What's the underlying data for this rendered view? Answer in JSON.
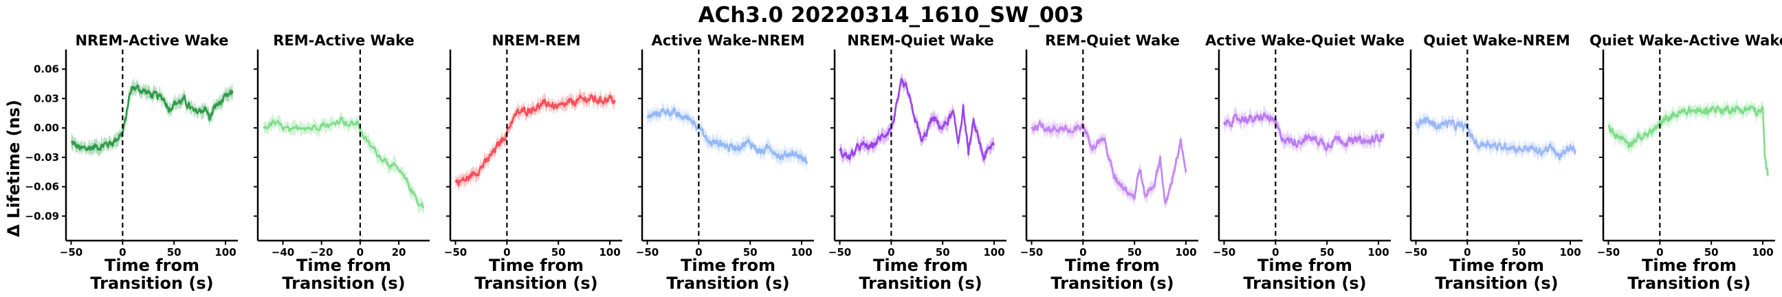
{
  "chart_data": {
    "type": "line",
    "title": "ACh3.0 20220314_1610_SW_003",
    "ylabel": "Δ Lifetime (ns)",
    "xlabel": "Time from\nTransition (s)",
    "ylim": [
      -0.115,
      0.08
    ],
    "yticks": [
      0.06,
      0.03,
      0.0,
      -0.03,
      -0.06,
      -0.09
    ],
    "ytick_labels": [
      "0.06",
      "0.03",
      "0.00",
      "−0.03",
      "−0.06",
      "−0.09"
    ],
    "grid": false,
    "transition_marker": "dashed vertical line at x = 0",
    "panels": [
      {
        "title": "NREM-Active Wake",
        "color": "#2e9c49",
        "xlim": [
          -55,
          112
        ],
        "xticks": [
          -50,
          0,
          50,
          100
        ],
        "x": [
          -50,
          -40,
          -30,
          -20,
          -10,
          0,
          3,
          6,
          10,
          15,
          20,
          30,
          40,
          45,
          50,
          60,
          70,
          80,
          85,
          90,
          100,
          107
        ],
        "y": [
          -0.015,
          -0.022,
          -0.02,
          -0.018,
          -0.015,
          -0.005,
          0.008,
          0.03,
          0.042,
          0.04,
          0.038,
          0.033,
          0.03,
          0.02,
          0.025,
          0.028,
          0.015,
          0.02,
          0.01,
          0.022,
          0.03,
          0.036
        ]
      },
      {
        "title": "REM-Active Wake",
        "color": "#7fdc8b",
        "xlim": [
          -53,
          36
        ],
        "xticks": [
          -40,
          -20,
          0,
          20
        ],
        "x": [
          -50,
          -45,
          -40,
          -35,
          -30,
          -25,
          -20,
          -15,
          -10,
          -5,
          -1,
          2,
          5,
          10,
          15,
          20,
          25,
          30,
          33
        ],
        "y": [
          0.0,
          0.005,
          0.0,
          -0.005,
          0.003,
          0.0,
          0.005,
          0.002,
          0.01,
          0.003,
          0.005,
          -0.01,
          -0.018,
          -0.028,
          -0.035,
          -0.045,
          -0.058,
          -0.075,
          -0.08
        ]
      },
      {
        "title": "NREM-REM",
        "color": "#f4505a",
        "xlim": [
          -55,
          112
        ],
        "xticks": [
          -50,
          0,
          50,
          100
        ],
        "x": [
          -50,
          -40,
          -30,
          -20,
          -10,
          0,
          5,
          10,
          20,
          30,
          40,
          50,
          60,
          70,
          80,
          90,
          100,
          105
        ],
        "y": [
          -0.055,
          -0.053,
          -0.045,
          -0.035,
          -0.02,
          -0.005,
          0.008,
          0.015,
          0.018,
          0.022,
          0.025,
          0.02,
          0.025,
          0.028,
          0.03,
          0.028,
          0.03,
          0.027
        ]
      },
      {
        "title": "Active Wake-NREM",
        "color": "#94b8f4",
        "xlim": [
          -55,
          112
        ],
        "xticks": [
          -50,
          0,
          50,
          100
        ],
        "x": [
          -50,
          -40,
          -30,
          -20,
          -10,
          0,
          5,
          10,
          20,
          30,
          40,
          50,
          60,
          70,
          80,
          90,
          100,
          105
        ],
        "y": [
          0.01,
          0.015,
          0.018,
          0.012,
          0.01,
          0.003,
          -0.008,
          -0.015,
          -0.015,
          -0.02,
          -0.018,
          -0.015,
          -0.025,
          -0.02,
          -0.03,
          -0.025,
          -0.03,
          -0.035
        ]
      },
      {
        "title": "NREM-Quiet Wake",
        "color": "#9b46e8",
        "xlim": [
          -55,
          112
        ],
        "xticks": [
          -50,
          0,
          50,
          100
        ],
        "x": [
          -50,
          -40,
          -30,
          -20,
          -10,
          0,
          5,
          10,
          15,
          20,
          30,
          40,
          50,
          60,
          65,
          70,
          75,
          80,
          90,
          100
        ],
        "y": [
          -0.025,
          -0.03,
          -0.018,
          -0.02,
          -0.01,
          0.0,
          0.02,
          0.045,
          0.04,
          0.02,
          -0.015,
          0.01,
          0.0,
          0.015,
          -0.015,
          0.02,
          -0.025,
          0.005,
          -0.03,
          -0.015
        ]
      },
      {
        "title": "REM-Quiet Wake",
        "color": "#c386f0",
        "xlim": [
          -55,
          112
        ],
        "xticks": [
          -50,
          0,
          50,
          100
        ],
        "x": [
          -50,
          -40,
          -30,
          -20,
          -10,
          0,
          5,
          10,
          20,
          30,
          40,
          50,
          55,
          60,
          70,
          75,
          80,
          85,
          90,
          95,
          100
        ],
        "y": [
          0.0,
          0.003,
          -0.002,
          0.0,
          -0.005,
          0.003,
          -0.01,
          -0.018,
          -0.01,
          -0.05,
          -0.06,
          -0.07,
          -0.04,
          -0.07,
          -0.055,
          -0.03,
          -0.08,
          -0.06,
          -0.035,
          -0.015,
          -0.048
        ]
      },
      {
        "title": "Active Wake-Quiet Wake",
        "color": "#b97af0",
        "xlim": [
          -55,
          112
        ],
        "xticks": [
          -50,
          0,
          50,
          100
        ],
        "x": [
          -50,
          -40,
          -30,
          -20,
          -10,
          0,
          5,
          10,
          20,
          30,
          40,
          50,
          60,
          70,
          80,
          90,
          100,
          105
        ],
        "y": [
          0.005,
          0.008,
          0.01,
          0.008,
          0.012,
          0.005,
          -0.008,
          -0.012,
          -0.015,
          -0.01,
          -0.012,
          -0.018,
          -0.01,
          -0.015,
          -0.012,
          -0.015,
          -0.01,
          -0.005
        ]
      },
      {
        "title": "Quiet Wake-NREM",
        "color": "#9bb8f6",
        "xlim": [
          -55,
          112
        ],
        "xticks": [
          -50,
          0,
          50,
          100
        ],
        "x": [
          -50,
          -40,
          -30,
          -20,
          -10,
          0,
          5,
          10,
          20,
          30,
          40,
          50,
          60,
          70,
          80,
          90,
          100,
          105
        ],
        "y": [
          0.003,
          0.008,
          0.002,
          0.005,
          0.002,
          0.0,
          -0.01,
          -0.018,
          -0.015,
          -0.02,
          -0.018,
          -0.022,
          -0.02,
          -0.025,
          -0.02,
          -0.03,
          -0.02,
          -0.025
        ]
      },
      {
        "title": "Quiet Wake-Active Wake",
        "color": "#7fdc8b",
        "xlim": [
          -55,
          112
        ],
        "xticks": [
          -50,
          0,
          50,
          100
        ],
        "x": [
          -50,
          -40,
          -30,
          -20,
          -10,
          0,
          10,
          20,
          30,
          40,
          50,
          60,
          70,
          80,
          90,
          95,
          100,
          102,
          105
        ],
        "y": [
          0.0,
          -0.008,
          -0.015,
          -0.01,
          -0.005,
          0.003,
          0.012,
          0.015,
          0.018,
          0.016,
          0.02,
          0.018,
          0.02,
          0.018,
          0.02,
          0.015,
          0.018,
          -0.03,
          -0.048
        ]
      }
    ]
  }
}
